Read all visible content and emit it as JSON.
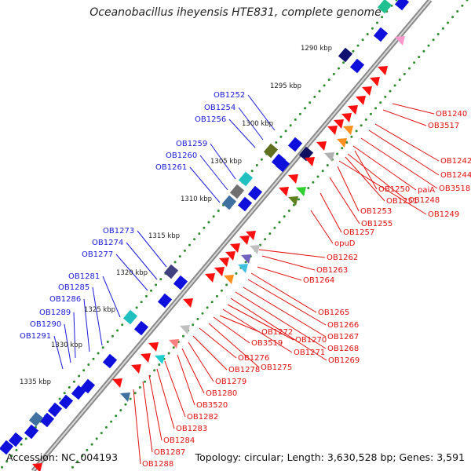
{
  "title": "Oceanobacillus iheyensis HTE831, complete genome",
  "footer": {
    "accession": "Accession: NC_004193",
    "topology": "Topology: circular; Length: 3,630,528 bp; Genes: 3,591"
  },
  "colors": {
    "backbone": "#888888",
    "tick_dots": "#2e8b2e",
    "forward_label": "#1a1ad8",
    "reverse_label": "#e01010"
  },
  "kbp_ticks": [
    "1290 kbp",
    "1295 kbp",
    "1300 kbp",
    "1305 kbp",
    "1310 kbp",
    "1315 kbp",
    "1320 kbp",
    "1325 kbp",
    "1330 kbp",
    "1335 kbp"
  ],
  "forward_labels": [
    "OB1252",
    "OB1254",
    "OB1256",
    "OB1259",
    "OB1260",
    "OB1261",
    "OB1273",
    "OB1274",
    "OB1277",
    "OB1281",
    "OB1285",
    "OB1286",
    "OB1289",
    "OB1290",
    "OB1291"
  ],
  "reverse_labels": [
    "OB1240",
    "OB3517",
    "OB1242",
    "OB1244",
    "OB3518",
    "paiA",
    "OB1248",
    "OB1249",
    "OB1250",
    "OB1251",
    "OB1253",
    "OB1255",
    "OB1257",
    "opuD",
    "OB1262",
    "OB1263",
    "OB1264",
    "OB1265",
    "OB1266",
    "OB1267",
    "OB1268",
    "OB1269",
    "OB1270",
    "OB1271",
    "OB1272",
    "OB3519",
    "OB1275",
    "OB1276",
    "OB1278",
    "OB1279",
    "OB1280",
    "OB3520",
    "OB1282",
    "OB1283",
    "OB1284",
    "OB1287",
    "OB1288"
  ]
}
